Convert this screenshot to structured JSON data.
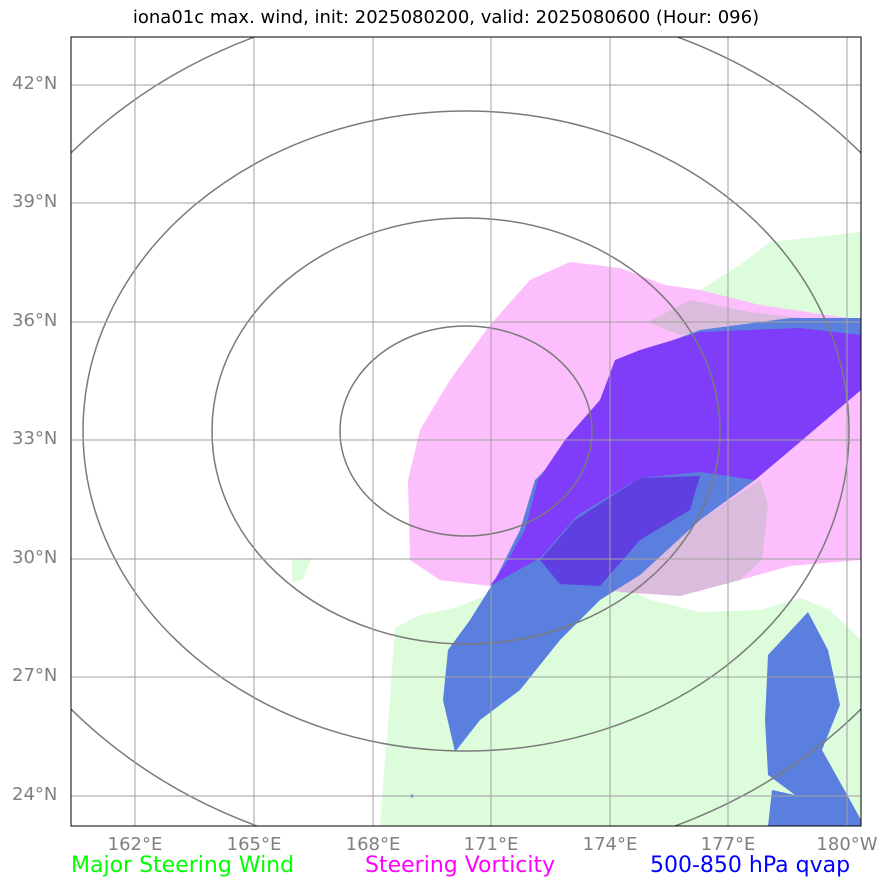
{
  "title": "iona01c max. wind, init: 2025080200, valid: 2025080600 (Hour: 096)",
  "lat_ticks": [
    "42°N",
    "39°N",
    "36°N",
    "33°N",
    "30°N",
    "27°N",
    "24°N"
  ],
  "lon_ticks": [
    "162°E",
    "165°E",
    "168°E",
    "171°E",
    "174°E",
    "177°E",
    "180°W"
  ],
  "legend": {
    "steering_wind": "Major Steering Wind",
    "steering_vorticity": "Steering Vorticity",
    "qvap": "500-850 hPa qvap"
  },
  "colors": {
    "steering_wind": "#00ff00",
    "steering_wind_fill": "#dcfcdc",
    "steering_vorticity": "#ff00ff",
    "steering_vorticity_fill": "#fdbefd",
    "qvap": "#0000ff",
    "qvap_fill": "#5b7fde",
    "overlap_fill": "#7f3dfa",
    "contour": "#7a7a7a",
    "grid": "#a0a0a0"
  }
}
